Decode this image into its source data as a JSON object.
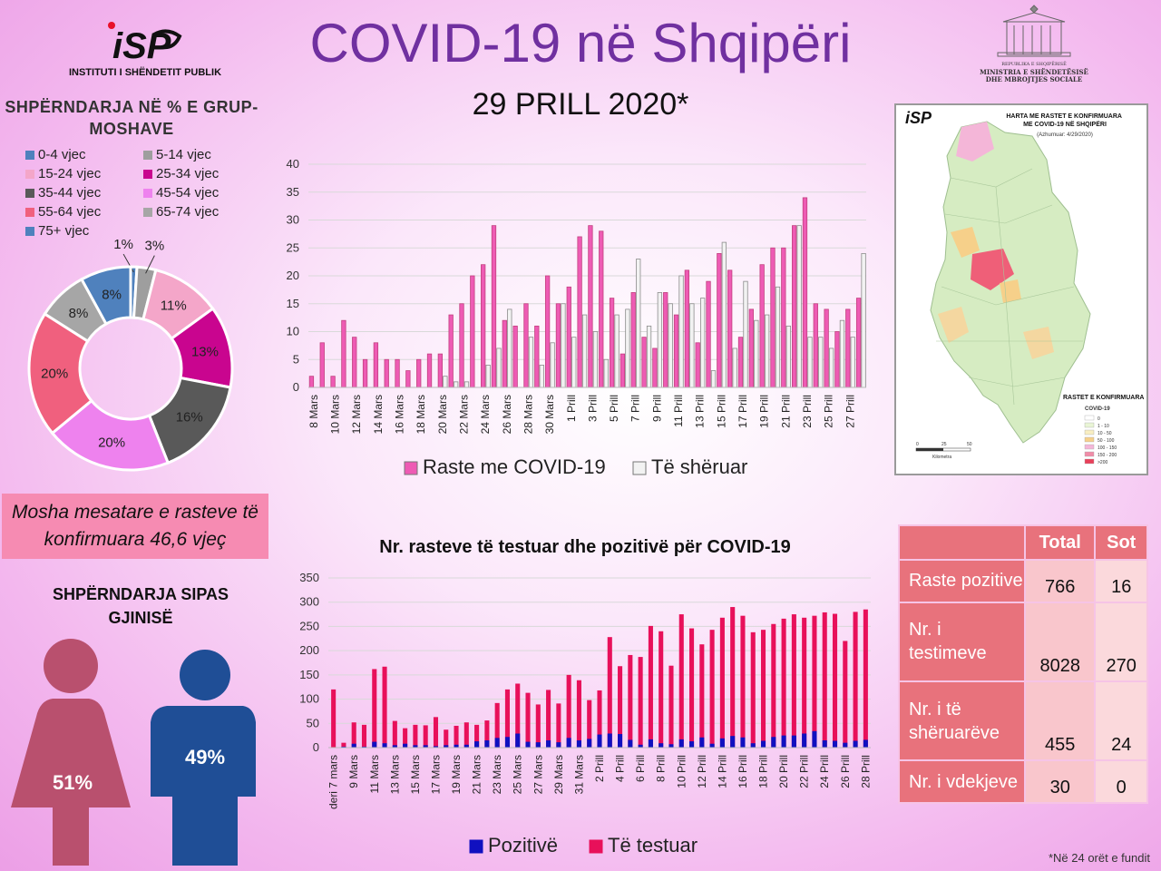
{
  "header": {
    "title": "COVID-19 në Shqipëri",
    "date": "29 PRILL 2020*",
    "isp_logo_text": "INSTITUTI I SHËNDETIT PUBLIK",
    "ministry_line1": "REPUBLIKA E SHQIPËRISË",
    "ministry_line2": "MINISTRIA E SHËNDETËSISË DHE MBROJTJES SOCIALE"
  },
  "age_section": {
    "title": "SHPËRNDARJA NË % E GRUP-MOSHAVE",
    "legend": [
      "0-4 vjec",
      "5-14 vjec",
      "15-24 vjec",
      "25-34 vjec",
      "35-44 vjec",
      "45-54 vjec",
      "55-64 vjec",
      "65-74 vjec",
      "75+ vjec"
    ],
    "colors": [
      "#4f81bd",
      "#9e9e9e",
      "#f4a6c9",
      "#c9058f",
      "#595959",
      "#ee82ee",
      "#f0607e",
      "#a6a6a6",
      "#4f81bd"
    ]
  },
  "mean_age": "Mosha mesatare e rasteve të konfirmuara 46,6 vjeç",
  "gender": {
    "title": "SHPËRNDARJA SIPAS GJINISË",
    "female_pct": "51%",
    "male_pct": "49%",
    "female_color": "#b9506e",
    "male_color": "#1f4e96"
  },
  "map": {
    "title": "HARTA ME RASTET E KONFIRMUARA ME COVID-19 NË SHQIPËRI",
    "updated": "(Azhurnuar: 4/29/2020)",
    "legend_title": "RASTET E KONFIRMUARA",
    "legend_sub": "COVID-19",
    "legend_items": [
      "0",
      "1 - 10",
      "10 - 50",
      "50 - 100",
      "100 - 150",
      "150 - 200",
      ">200"
    ],
    "scale_labels": [
      "0",
      "25",
      "50"
    ],
    "scale_unit": "Kilometra"
  },
  "stats_table": {
    "headers": [
      "",
      "Total",
      "Sot"
    ],
    "rows": [
      {
        "label": "Raste pozitive",
        "total": "766",
        "today": "16"
      },
      {
        "label": "Nr. i testimeve",
        "total": "8028",
        "today": "270"
      },
      {
        "label": "Nr. i të shëruarëve",
        "total": "455",
        "today": "24"
      },
      {
        "label": "Nr. i vdekjeve",
        "total": "30",
        "today": "0"
      }
    ]
  },
  "footnote": "*Në 24 orët e fundit",
  "chart_data": [
    {
      "type": "pie",
      "title": "SHPËRNDARJA NË % E GRUP-MOSHAVE",
      "categories": [
        "0-4 vjec",
        "5-14 vjec",
        "15-24 vjec",
        "25-34 vjec",
        "35-44 vjec",
        "45-54 vjec",
        "55-64 vjec",
        "65-74 vjec",
        "75+ vjec"
      ],
      "values": [
        1,
        3,
        11,
        13,
        16,
        20,
        20,
        8,
        8
      ],
      "labels": [
        "1%",
        "3%",
        "11%",
        "13%",
        "16%",
        "20%",
        "20%",
        "8%",
        "8%"
      ]
    },
    {
      "type": "bar",
      "xlabel": "",
      "ylabel": "",
      "ylim": [
        0,
        40
      ],
      "yticks": [
        0,
        5,
        10,
        15,
        20,
        25,
        30,
        35,
        40
      ],
      "categories": [
        "8 Mars",
        "9 Mars",
        "10 Mars",
        "11 Mars",
        "12 Mars",
        "13 Mars",
        "14 Mars",
        "15 Mars",
        "16 Mars",
        "17 Mars",
        "18 Mars",
        "19 Mars",
        "20 Mars",
        "21 Mars",
        "22 Mars",
        "23 Mars",
        "24 Mars",
        "25 Mars",
        "26 Mars",
        "27 Mars",
        "28 Mars",
        "29 Mars",
        "30 Mars",
        "31 Mars",
        "1 Prill",
        "2 Prill",
        "3 Prill",
        "4 Prill",
        "5 Prill",
        "6 Prill",
        "7 Prill",
        "8 Prill",
        "9 Prill",
        "10 Prill",
        "11 Prill",
        "12 Prill",
        "13 Prill",
        "14 Prill",
        "15 Prill",
        "16 Prill",
        "17 Prill",
        "18 Prill",
        "19 Prill",
        "20 Prill",
        "21 Prill",
        "22 Prill",
        "23 Prill",
        "24 Prill",
        "25 Prill",
        "26 Prill",
        "27 Prill",
        "28 Prill"
      ],
      "tick_labels": [
        "8 Mars",
        "10 Mars",
        "12 Mars",
        "14 Mars",
        "16 Mars",
        "18 Mars",
        "20 Mars",
        "22 Mars",
        "24 Mars",
        "26 Mars",
        "28 Mars",
        "30 Mars",
        "1 Prill",
        "3 Prill",
        "5 Prill",
        "7 Prill",
        "9 Prill",
        "11 Prill",
        "13 Prill",
        "15 Prill",
        "17 Prill",
        "19 Prill",
        "21 Prill",
        "23 Prill",
        "25 Prill",
        "27 Prill"
      ],
      "series": [
        {
          "name": "Raste me COVID-19",
          "color": "#ee5bb4",
          "values": [
            2,
            8,
            2,
            12,
            9,
            5,
            8,
            5,
            5,
            3,
            5,
            6,
            6,
            13,
            15,
            20,
            22,
            29,
            12,
            11,
            15,
            11,
            20,
            15,
            18,
            27,
            29,
            28,
            16,
            6,
            17,
            9,
            7,
            17,
            13,
            21,
            8,
            19,
            24,
            21,
            9,
            14,
            22,
            25,
            25,
            29,
            34,
            15,
            14,
            10,
            14,
            16
          ]
        },
        {
          "name": "Të shëruar",
          "color": "#f2f2f2",
          "values": [
            0,
            0,
            0,
            0,
            0,
            0,
            0,
            0,
            0,
            0,
            0,
            0,
            2,
            1,
            1,
            0,
            4,
            7,
            14,
            0,
            9,
            4,
            8,
            15,
            9,
            13,
            10,
            5,
            13,
            14,
            23,
            11,
            17,
            15,
            20,
            15,
            16,
            3,
            26,
            7,
            19,
            12,
            13,
            18,
            11,
            29,
            9,
            9,
            7,
            12,
            9,
            24
          ]
        }
      ]
    },
    {
      "type": "bar",
      "title": "Nr. rasteve të testuar dhe pozitivë për COVID-19",
      "xlabel": "",
      "ylabel": "",
      "ylim": [
        0,
        350
      ],
      "yticks": [
        0,
        50,
        100,
        150,
        200,
        250,
        300,
        350
      ],
      "categories": [
        "deri 7 mars",
        "8 Mars",
        "9 Mars",
        "10 Mars",
        "11 Mars",
        "12 Mars",
        "13 Mars",
        "14 Mars",
        "15 Mars",
        "16 Mars",
        "17 Mars",
        "18 Mars",
        "19 Mars",
        "20 Mars",
        "21 Mars",
        "22 Mars",
        "23 Mars",
        "24 Mars",
        "25 Mars",
        "26 Mars",
        "27 Mars",
        "28 Mars",
        "29 Mars",
        "30 Mars",
        "31 Mars",
        "1 Prill",
        "2 Prill",
        "3 Prill",
        "4 Prill",
        "5 Prill",
        "6 Prill",
        "7 Prill",
        "8 Prill",
        "9 Prill",
        "10 Prill",
        "11 Prill",
        "12 Prill",
        "13 Prill",
        "14 Prill",
        "15 Prill",
        "16 Prill",
        "17 Prill",
        "18 Prill",
        "19 Prill",
        "20 Prill",
        "21 Prill",
        "22 Prill",
        "23 Prill",
        "24 Prill",
        "25 Prill",
        "26 Prill",
        "27 Prill",
        "28 Prill"
      ],
      "tick_labels": [
        "deri 7 mars",
        "9 Mars",
        "11 Mars",
        "13 Mars",
        "15 Mars",
        "17 Mars",
        "19 Mars",
        "21 Mars",
        "23 Mars",
        "25 Mars",
        "27 Mars",
        "29 Mars",
        "31 Mars",
        "2 Prill",
        "4 Prill",
        "6 Prill",
        "8 Prill",
        "10 Prill",
        "12 Prill",
        "14 Prill",
        "16 Prill",
        "18 Prill",
        "20 Prill",
        "22 Prill",
        "24 Prill",
        "26 Prill",
        "28 Prill"
      ],
      "series": [
        {
          "name": "Pozitivë",
          "color": "#1010c0",
          "values": [
            0,
            2,
            8,
            2,
            12,
            9,
            5,
            8,
            5,
            5,
            3,
            5,
            6,
            6,
            13,
            15,
            20,
            22,
            29,
            12,
            11,
            15,
            11,
            20,
            15,
            18,
            27,
            29,
            28,
            16,
            6,
            17,
            9,
            7,
            17,
            13,
            21,
            8,
            19,
            24,
            21,
            9,
            14,
            22,
            25,
            25,
            29,
            34,
            15,
            14,
            10,
            14,
            16
          ]
        },
        {
          "name": "Të testuar",
          "color": "#e8105a",
          "values": [
            120,
            10,
            52,
            47,
            162,
            167,
            55,
            40,
            47,
            46,
            63,
            37,
            45,
            52,
            47,
            56,
            92,
            120,
            132,
            113,
            89,
            119,
            91,
            150,
            139,
            98,
            118,
            228,
            168,
            191,
            187,
            251,
            240,
            169,
            275,
            246,
            213,
            243,
            268,
            290,
            272,
            238,
            243,
            255,
            266,
            275,
            268,
            272,
            279,
            276,
            220,
            280,
            285
          ]
        }
      ]
    }
  ]
}
